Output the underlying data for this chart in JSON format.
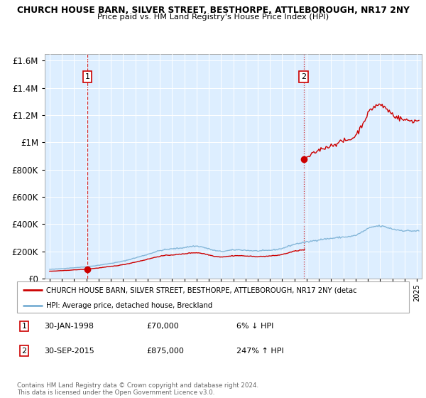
{
  "title_line1": "CHURCH HOUSE BARN, SILVER STREET, BESTHORPE, ATTLEBOROUGH, NR17 2NY",
  "title_line2": "Price paid vs. HM Land Registry's House Price Index (HPI)",
  "sale1_date": "30-JAN-1998",
  "sale1_price": 70000,
  "sale2_date": "30-SEP-2015",
  "sale2_price": 875000,
  "sale1_hpi_pct": "6% ↓ HPI",
  "sale2_hpi_pct": "247% ↑ HPI",
  "legend_line1": "CHURCH HOUSE BARN, SILVER STREET, BESTHORPE, ATTLEBOROUGH, NR17 2NY (detac",
  "legend_line2": "HPI: Average price, detached house, Breckland",
  "footnote": "Contains HM Land Registry data © Crown copyright and database right 2024.\nThis data is licensed under the Open Government Licence v3.0.",
  "sale_color": "#cc0000",
  "hpi_color": "#7ab0d4",
  "bg_color": "#ddeeff",
  "ylim_max": 1650000
}
